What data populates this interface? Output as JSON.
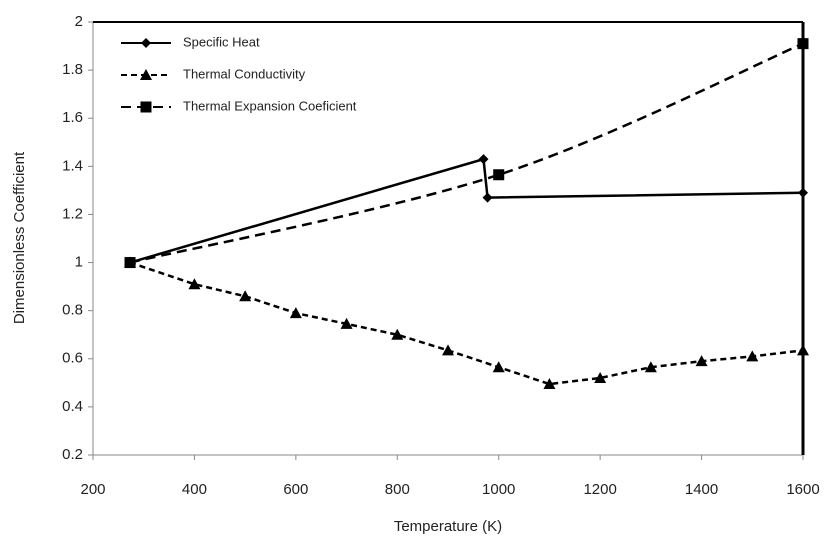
{
  "chart_data": {
    "type": "line",
    "xlabel": "Temperature (K)",
    "ylabel": "Dimensionless Coefficient",
    "xlim": [
      200,
      1600
    ],
    "xticks": [
      200,
      400,
      600,
      800,
      1000,
      1200,
      1400,
      1600
    ],
    "ylim": [
      0.2,
      2
    ],
    "yticks": [
      0.2,
      0.4,
      0.6,
      0.8,
      1,
      1.2,
      1.4,
      1.6,
      1.8,
      2
    ],
    "legend": "upper left",
    "grid": false,
    "series": [
      {
        "name": "Specific Heat",
        "color": "#000000",
        "marker": "diamond",
        "dash": "solid",
        "smooth": false,
        "x": [
          273,
          970,
          978,
          1600
        ],
        "values": [
          1.0,
          1.43,
          1.27,
          1.29
        ]
      },
      {
        "name": "Thermal Conductivity",
        "color": "#000000",
        "marker": "triangle",
        "dash": "dashed",
        "smooth": false,
        "x": [
          273,
          400,
          500,
          600,
          700,
          800,
          900,
          1000,
          1100,
          1200,
          1300,
          1400,
          1500,
          1600
        ],
        "values": [
          1.0,
          0.91,
          0.86,
          0.79,
          0.745,
          0.7,
          0.635,
          0.565,
          0.495,
          0.52,
          0.565,
          0.59,
          0.61,
          0.635
        ]
      },
      {
        "name": "Thermal Expansion Coeficient",
        "color": "#000000",
        "marker": "square",
        "dash": "longdash",
        "smooth": true,
        "x": [
          273,
          1000,
          1600
        ],
        "values": [
          1.0,
          1.365,
          1.91
        ]
      }
    ]
  }
}
